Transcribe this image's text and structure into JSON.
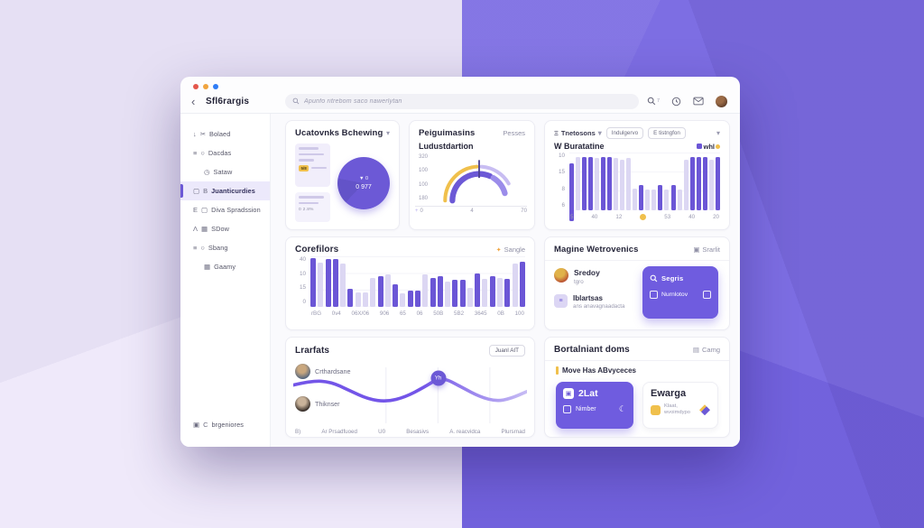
{
  "colors": {
    "accent": "#6C59D6",
    "accent_light": "#DCD7F3",
    "yellow": "#F0C04C",
    "bg_left": "#E8E2F5",
    "bg_right": "#7666E2"
  },
  "window": {
    "back_icon": "‹",
    "title": "Sfl6rargis"
  },
  "topbar": {
    "search_placeholder": "Apunfo ritrebom saco nawerlytan",
    "shortcut": "7"
  },
  "sidebar": {
    "items": [
      {
        "label": "Bolaed",
        "icons": [
          "download-icon",
          "scissors-icon"
        ]
      },
      {
        "label": "Dacdas",
        "icons": [
          "menu-icon",
          "circle-icon"
        ]
      },
      {
        "label": "Sataw",
        "icons": [
          "clock-icon"
        ],
        "indent": true
      },
      {
        "label": "Juanticurdies",
        "icons": [
          "square-icon",
          "letter-b-icon"
        ],
        "active": true
      },
      {
        "label": "Diva Spradssion",
        "icons": [
          "letter-e-icon",
          "shield-icon"
        ]
      },
      {
        "label": "SDow",
        "icons": [
          "letter-a-icon",
          "image-icon"
        ]
      },
      {
        "label": "Sbang",
        "icons": [
          "menu-icon",
          "circle-icon"
        ]
      },
      {
        "label": "Gaamy",
        "icons": [
          "grid-icon"
        ],
        "indent": true
      }
    ],
    "footer": {
      "label": "brgeniores",
      "icons": [
        "box-icon",
        "letter-c-icon"
      ]
    }
  },
  "cards": {
    "overview": {
      "title": "Ucatovnks Bchewing",
      "chip": "5/8",
      "box2_text": "0 2.8%",
      "donut_line1": "▼ 0",
      "donut_line2": "0 977"
    },
    "gauge": {
      "title": "Peiguimasins",
      "right_label": "Pesses",
      "chart_title": "Ludustdartion",
      "plus_mark": "+"
    },
    "bars_top": {
      "menu_label": "Tnetosons",
      "chip1": "Indulgervo",
      "chip2": "E tistngfon",
      "chart_title": "W Buratatine",
      "legend": "whl"
    },
    "bars_mid": {
      "title": "Corefilors",
      "badge": "Sangle"
    },
    "people": {
      "title": "Magine Wetrovenics",
      "badge": "Srarlit",
      "rows": [
        {
          "name": "Sredoy",
          "sub": "tgro"
        },
        {
          "name": "Iblartsas",
          "sub": "ans anavagnaadacta"
        }
      ],
      "panel": {
        "primary": "Segris",
        "secondary": "Nurnlotov"
      }
    },
    "line": {
      "title": "Lrarfats",
      "button": "Juanl AIT",
      "people": [
        {
          "name": "Crthardsane"
        },
        {
          "name": "Thiknser"
        }
      ]
    },
    "tiles": {
      "title": "Bortalniant doms",
      "badge": "Camg",
      "note": "Move Has ABvyceces",
      "tile1": {
        "value": "2Lat",
        "label": "Nimber"
      },
      "tile2": {
        "title": "Ewarga",
        "label": "Klaat, wvoimdypo"
      }
    }
  },
  "chart_data": [
    {
      "type": "pie",
      "card": "overview",
      "center_labels": [
        "▼ 0",
        "0 977"
      ],
      "slices": [
        {
          "label": "whl",
          "value": 100,
          "color": "#6C59D6"
        }
      ]
    },
    {
      "type": "gauge",
      "card": "gauge",
      "title": "Ludustdartion",
      "y_ticks": [
        "320",
        "100",
        "100",
        "180"
      ],
      "x_ticks": [
        "0",
        "4",
        "70"
      ],
      "arcs": [
        {
          "ring": "outer",
          "color": "#F0C04C",
          "from": 180,
          "to": 94
        },
        {
          "ring": "outer",
          "color": "#C8BDF2",
          "from": 86,
          "to": 30
        },
        {
          "ring": "inner",
          "color": "#6C59D6",
          "from": 180,
          "to": 66
        },
        {
          "ring": "inner",
          "color": "#9B8CEA",
          "from": 58,
          "to": 16
        }
      ]
    },
    {
      "type": "bar",
      "card": "bars_top",
      "title": "W Buratatine",
      "legend": [
        "whl"
      ],
      "y_ticks": [
        "10",
        "15",
        "8",
        "6"
      ],
      "x_labels": [
        "5",
        "40",
        "12",
        "•",
        "53",
        "40",
        "20"
      ],
      "bars": [
        [
          100,
          "d",
          1
        ],
        [
          92,
          "l"
        ],
        [
          92,
          "d"
        ],
        [
          92,
          "d"
        ],
        [
          90,
          "l"
        ],
        [
          92,
          "d"
        ],
        [
          92,
          "d"
        ],
        [
          90,
          "l"
        ],
        [
          88,
          "l"
        ],
        [
          90,
          "l"
        ],
        [
          38,
          "l"
        ],
        [
          44,
          "d"
        ],
        [
          36,
          "l"
        ],
        [
          36,
          "l"
        ],
        [
          44,
          "d"
        ],
        [
          36,
          "l"
        ],
        [
          44,
          "d"
        ],
        [
          36,
          "l"
        ],
        [
          88,
          "l"
        ],
        [
          92,
          "d"
        ],
        [
          92,
          "d"
        ],
        [
          92,
          "d"
        ],
        [
          88,
          "l"
        ],
        [
          92,
          "d"
        ]
      ]
    },
    {
      "type": "bar",
      "card": "bars_mid",
      "title": "Corefilors",
      "y_ticks": [
        "40",
        "10",
        "15",
        "0"
      ],
      "x_labels": [
        "rBG",
        "0v4",
        "06X/06",
        "906",
        "65",
        "06",
        "50B",
        "5B2",
        "3645",
        "0B",
        "100"
      ],
      "bars": [
        [
          96,
          "d"
        ],
        [
          88,
          "l"
        ],
        [
          94,
          "d"
        ],
        [
          94,
          "d"
        ],
        [
          86,
          "l"
        ],
        [
          36,
          "d"
        ],
        [
          28,
          "l"
        ],
        [
          28,
          "l"
        ],
        [
          58,
          "l"
        ],
        [
          60,
          "d"
        ],
        [
          64,
          "l"
        ],
        [
          44,
          "d"
        ],
        [
          26,
          "l"
        ],
        [
          32,
          "d"
        ],
        [
          32,
          "d"
        ],
        [
          64,
          "l"
        ],
        [
          58,
          "d"
        ],
        [
          60,
          "d"
        ],
        [
          50,
          "l"
        ],
        [
          54,
          "d"
        ],
        [
          54,
          "d"
        ],
        [
          38,
          "l"
        ],
        [
          66,
          "d"
        ],
        [
          56,
          "l"
        ],
        [
          60,
          "d"
        ],
        [
          58,
          "l"
        ],
        [
          56,
          "d"
        ],
        [
          86,
          "l"
        ],
        [
          90,
          "d"
        ]
      ]
    },
    {
      "type": "line",
      "card": "line",
      "x_labels": [
        "B)",
        "Ar Prsadfuoed",
        "U0",
        "Besasivs",
        "A. reacvidca",
        "Plursrnad"
      ],
      "points": [
        [
          0,
          36
        ],
        [
          8,
          28
        ],
        [
          16,
          30
        ],
        [
          24,
          46
        ],
        [
          32,
          62
        ],
        [
          40,
          67
        ],
        [
          48,
          58
        ],
        [
          56,
          40
        ],
        [
          62,
          24
        ],
        [
          66,
          26
        ],
        [
          72,
          40
        ],
        [
          80,
          58
        ],
        [
          87,
          66
        ],
        [
          93,
          61
        ],
        [
          100,
          48
        ]
      ],
      "marker": {
        "x": 62,
        "y": 20,
        "label": "Yh"
      },
      "stroke_from": "#7355E8",
      "stroke_to": "#C7BCF4"
    }
  ]
}
